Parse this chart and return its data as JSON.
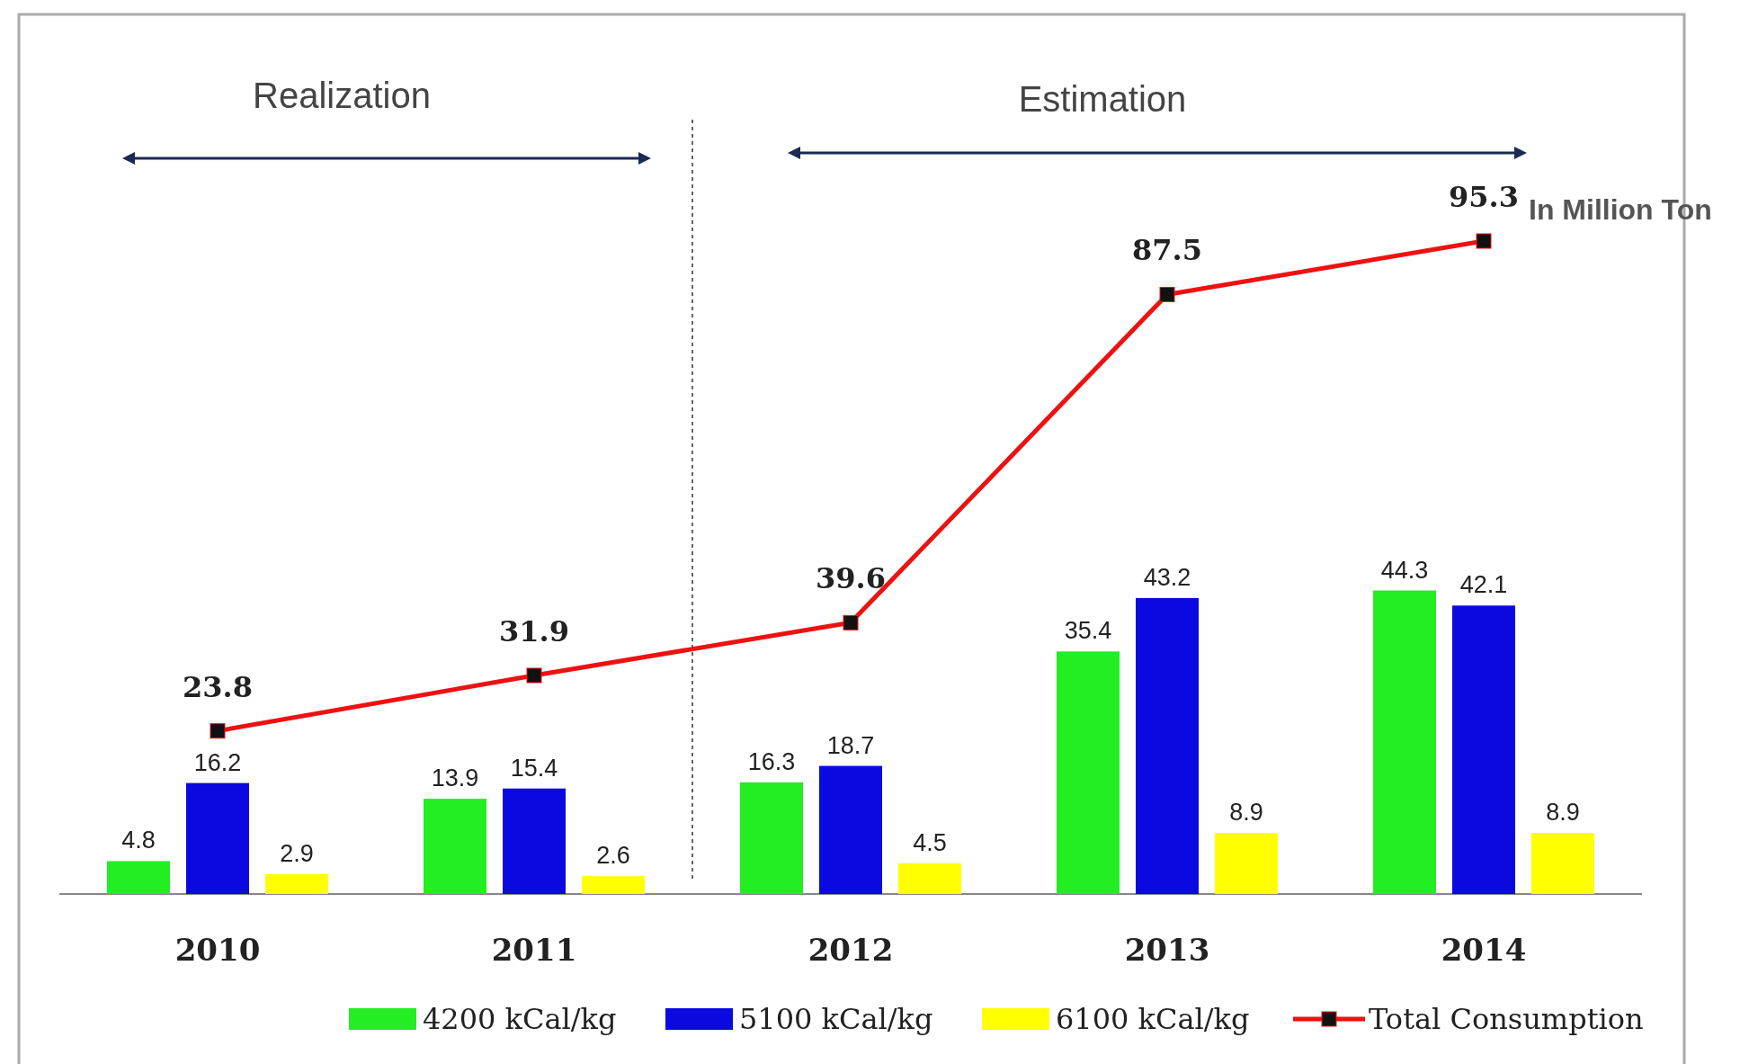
{
  "chart_data": {
    "type": "bar",
    "categories": [
      "2010",
      "2011",
      "2012",
      "2013",
      "2014"
    ],
    "series": [
      {
        "name": "4200 kCal/kg",
        "color": "#22ee22",
        "values": [
          4.8,
          13.9,
          16.3,
          35.4,
          44.3
        ]
      },
      {
        "name": "5100 kCal/kg",
        "color": "#0a0ae0",
        "values": [
          16.2,
          15.4,
          18.7,
          43.2,
          42.1
        ]
      },
      {
        "name": "6100 kCal/kg",
        "color": "#ffff00",
        "values": [
          2.9,
          2.6,
          4.5,
          8.9,
          8.9
        ]
      },
      {
        "name": "Total Consumption",
        "type": "line",
        "color": "#ee1111",
        "marker": "square",
        "values": [
          23.8,
          31.9,
          39.6,
          87.5,
          95.3
        ]
      }
    ],
    "annotations": [
      "Realization",
      "Estimation",
      "In Million Ton"
    ],
    "data_labels": true,
    "legend": "bottom"
  }
}
